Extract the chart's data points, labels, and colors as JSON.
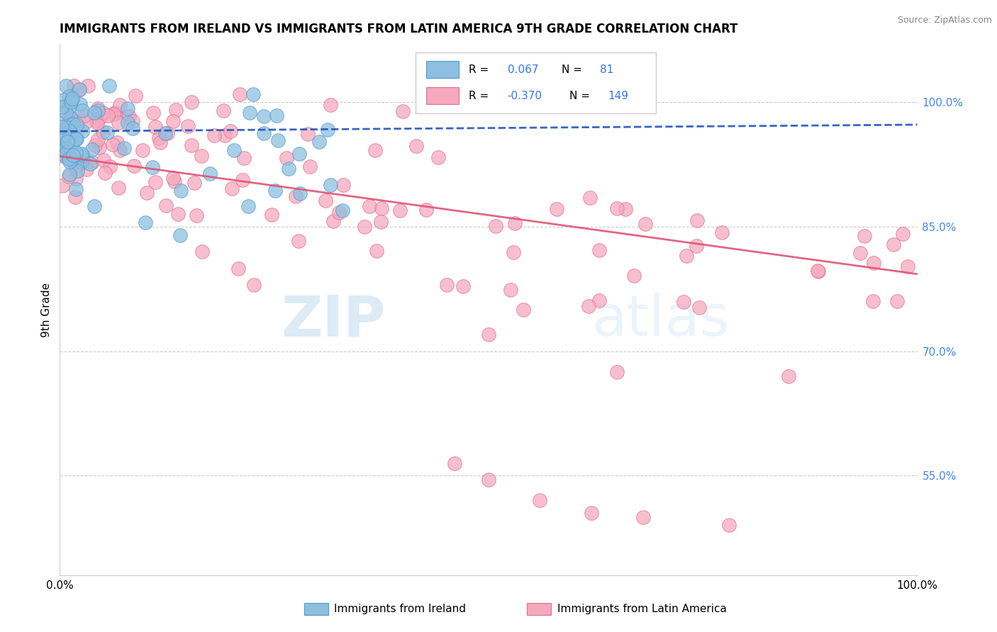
{
  "title": "IMMIGRANTS FROM IRELAND VS IMMIGRANTS FROM LATIN AMERICA 9TH GRADE CORRELATION CHART",
  "source": "Source: ZipAtlas.com",
  "ylabel": "9th Grade",
  "x_min": 0.0,
  "x_max": 1.0,
  "y_min": 0.43,
  "y_max": 1.07,
  "right_yticks": [
    0.55,
    0.7,
    0.85,
    1.0
  ],
  "right_yticklabels": [
    "55.0%",
    "70.0%",
    "85.0%",
    "100.0%"
  ],
  "footer_labels": [
    "Immigrants from Ireland",
    "Immigrants from Latin America"
  ],
  "ireland_color": "#8cbfe0",
  "ireland_edge": "#5599cc",
  "latin_color": "#f5a8be",
  "latin_edge": "#e07090",
  "ireland_trend_color": "#2255bb",
  "latin_trend_color": "#e05575",
  "watermark_zip": "ZIP",
  "watermark_atlas": "atlas",
  "ireland_N": 81,
  "latin_N": 149,
  "ireland_R": 0.067,
  "latin_R": -0.37,
  "ireland_trend_x0": 0.0,
  "ireland_trend_y0": 0.965,
  "ireland_trend_x1": 1.0,
  "ireland_trend_y1": 0.973,
  "latin_trend_x0": 0.0,
  "latin_trend_y0": 0.935,
  "latin_trend_x1": 1.0,
  "latin_trend_y1": 0.793,
  "grid_color": "#cccccc",
  "spine_color": "#cccccc"
}
